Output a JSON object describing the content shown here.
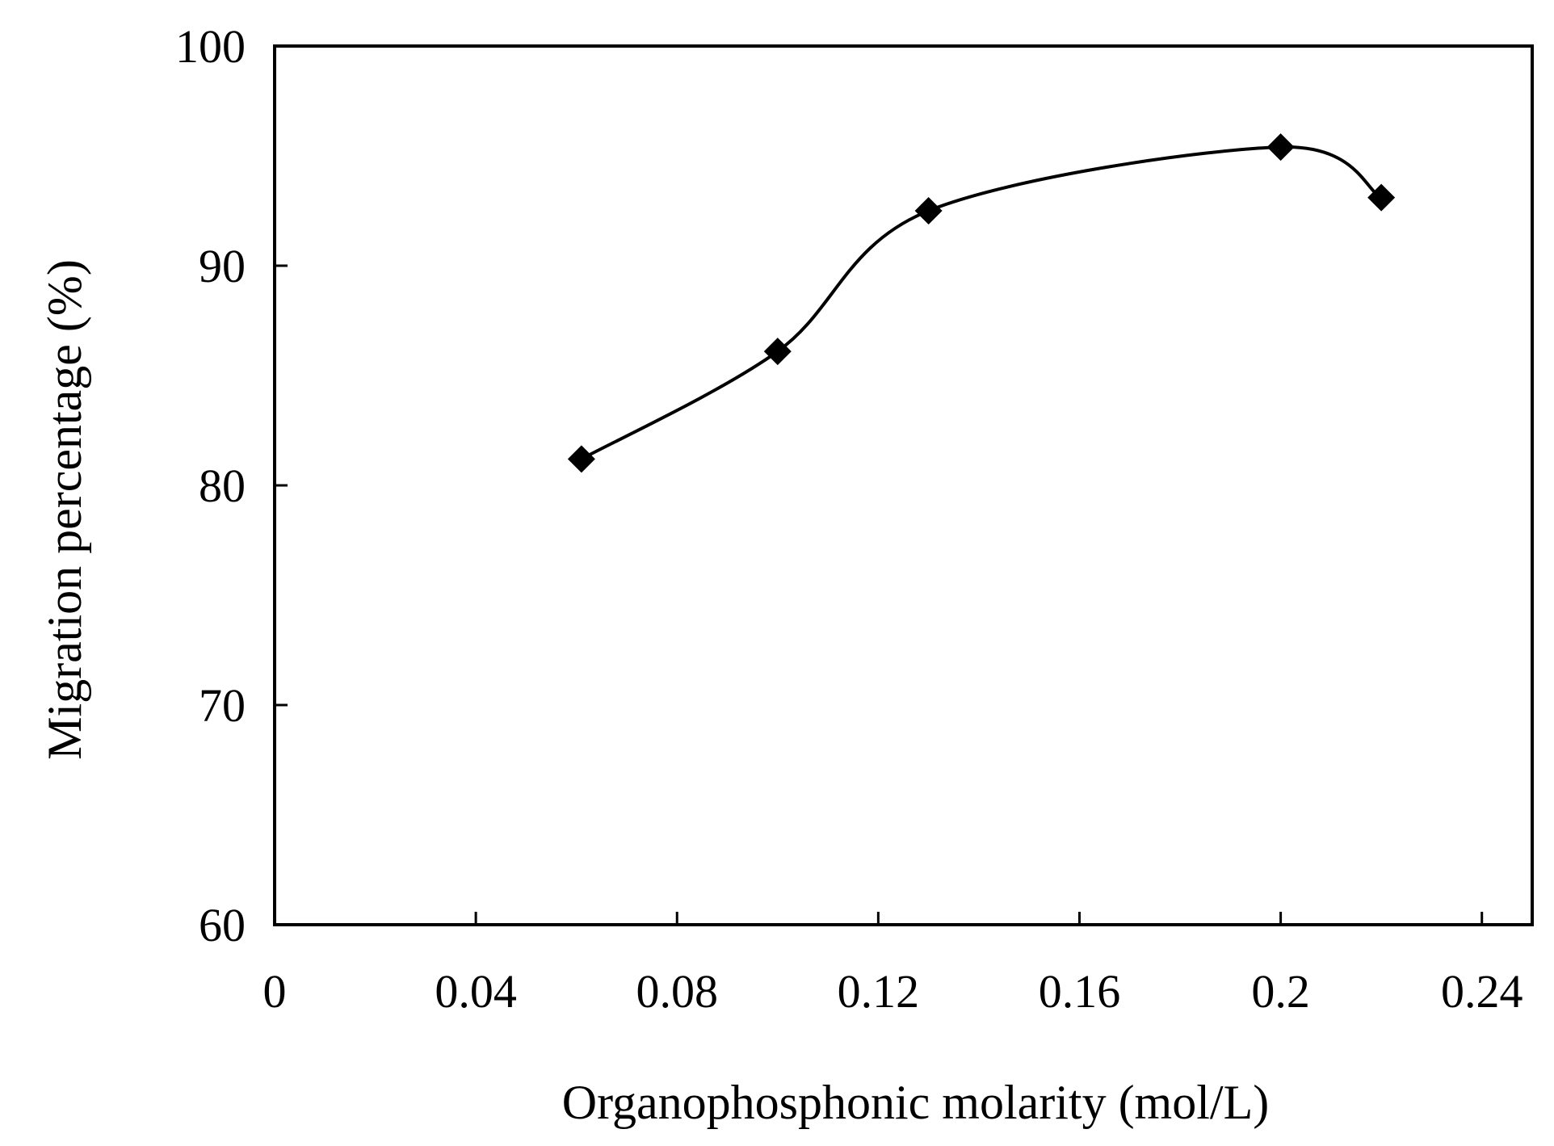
{
  "chart_data": {
    "type": "line",
    "title": "",
    "xlabel": "Organophosphonic molarity (mol/L)",
    "ylabel": "Migration percentage (%)",
    "xlim": [
      0,
      0.25
    ],
    "ylim": [
      60,
      100
    ],
    "x_ticks": [
      0,
      0.04,
      0.08,
      0.12,
      0.16,
      0.2,
      0.24
    ],
    "x_tick_labels": [
      "0",
      "0.04",
      "0.08",
      "0.12",
      "0.16",
      "0.2",
      "0.24"
    ],
    "y_ticks": [
      60,
      70,
      80,
      90,
      100
    ],
    "y_tick_labels": [
      "60",
      "70",
      "80",
      "90",
      "100"
    ],
    "grid": false,
    "series": [
      {
        "name": "Migration percentage",
        "marker": "diamond",
        "smooth": true,
        "color": "#000000",
        "x": [
          0.061,
          0.1,
          0.13,
          0.2,
          0.22
        ],
        "y": [
          81.2,
          86.1,
          92.5,
          95.4,
          93.1
        ]
      }
    ]
  }
}
